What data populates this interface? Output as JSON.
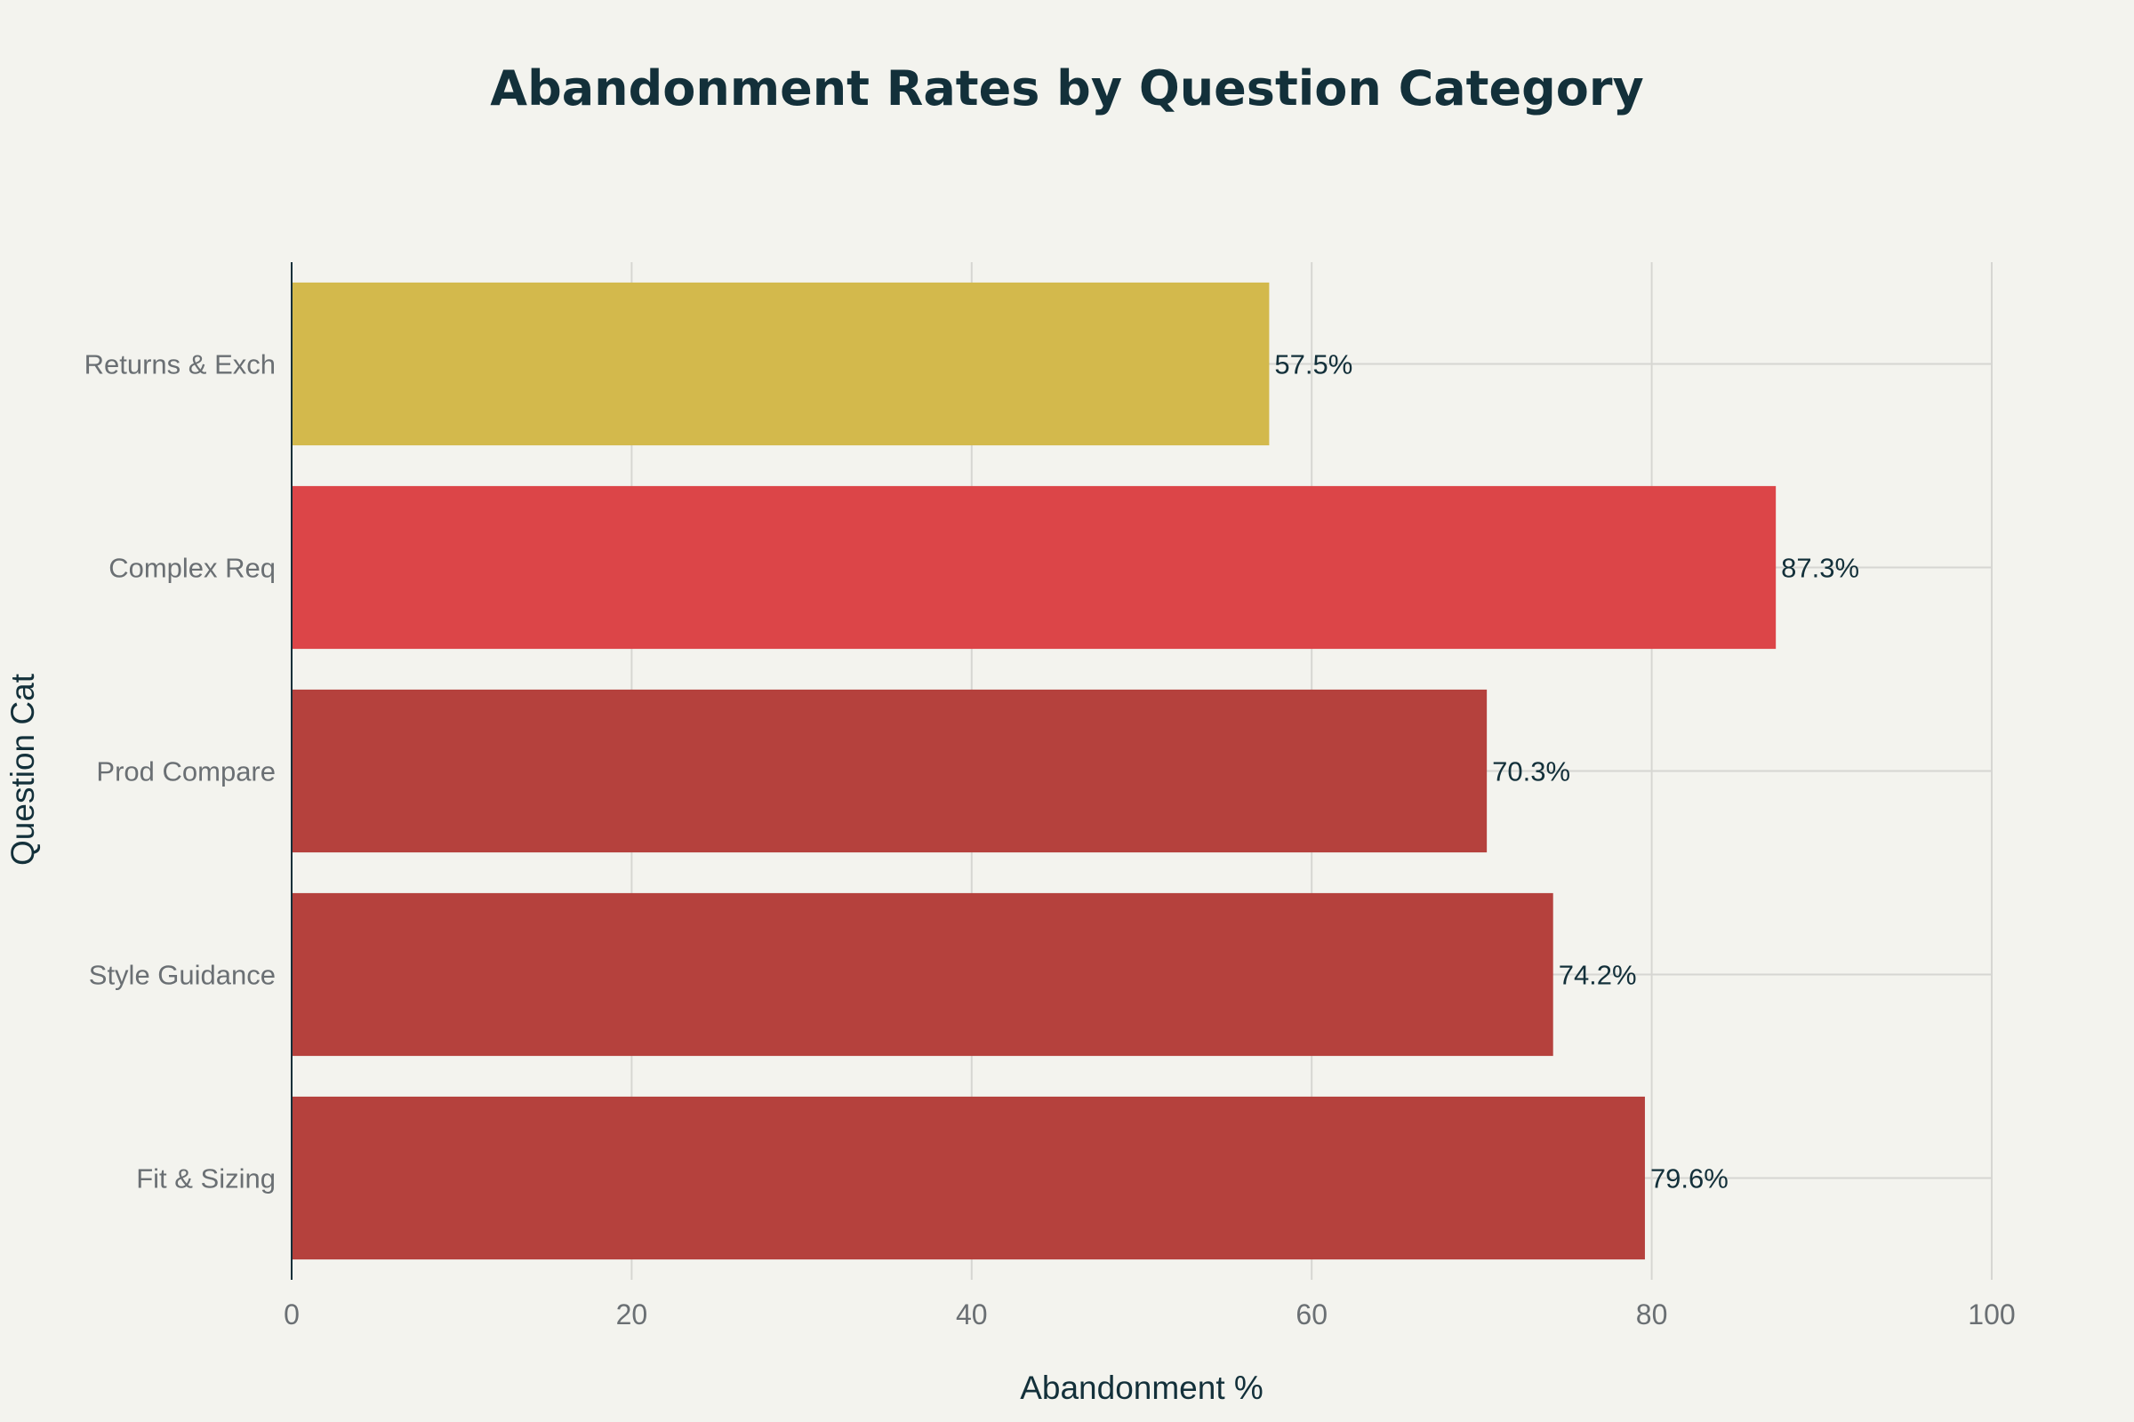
{
  "chart_data": {
    "type": "bar",
    "orientation": "horizontal",
    "title": "Abandonment Rates by Question Category",
    "xlabel": "Abandonment %",
    "ylabel": "Question Cat",
    "xlim": [
      0,
      100
    ],
    "xticks": [
      "0",
      "20",
      "40",
      "60",
      "80",
      "100"
    ],
    "grid": true,
    "categories": [
      "Returns & Exch",
      "Complex Req",
      "Prod Compare",
      "Style Guidance",
      "Fit & Sizing"
    ],
    "values": [
      57.5,
      87.3,
      70.3,
      74.2,
      79.6
    ],
    "value_labels": [
      "57.5%",
      "87.3%",
      "70.3%",
      "74.2%",
      "79.6%"
    ],
    "colors": [
      "#d3b94c",
      "#dc4548",
      "#b5413d",
      "#b5413d",
      "#b5413d"
    ]
  }
}
